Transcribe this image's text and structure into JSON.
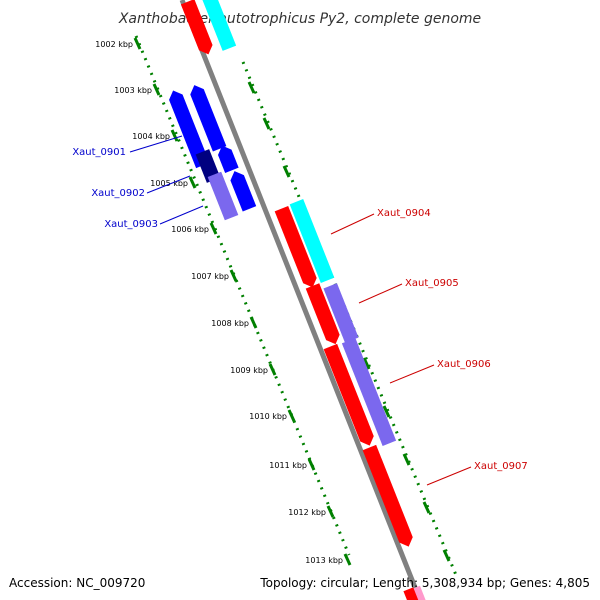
{
  "title": "Xanthobacter autotrophicus Py2, complete genome",
  "footer": {
    "accession": "Accession: NC_009720",
    "summary": "Topology: circular; Length: 5,308,934 bp; Genes: 4,805"
  },
  "ruler": {
    "ticks": [
      "1002 kbp",
      "1003 kbp",
      "1004 kbp",
      "1005 kbp",
      "1006 kbp",
      "1007 kbp",
      "1008 kbp",
      "1009 kbp",
      "1010 kbp",
      "1011 kbp",
      "1012 kbp",
      "1013 kbp"
    ]
  },
  "genes": {
    "left": [
      {
        "name": "Xaut_0901"
      },
      {
        "name": "Xaut_0902"
      },
      {
        "name": "Xaut_0903"
      }
    ],
    "right": [
      {
        "name": "Xaut_0904"
      },
      {
        "name": "Xaut_0905"
      },
      {
        "name": "Xaut_0906"
      },
      {
        "name": "Xaut_0907"
      }
    ]
  },
  "colors": {
    "forward": "#ff0000",
    "reverse": "#0000ff",
    "cyan": "#00ffff",
    "violet": "#7b68ee",
    "navy": "#000080",
    "pink": "#ff99cc",
    "backbone": "#808080",
    "ruler": "#008000",
    "label_left": "#0000cc",
    "label_right": "#cc0000"
  }
}
